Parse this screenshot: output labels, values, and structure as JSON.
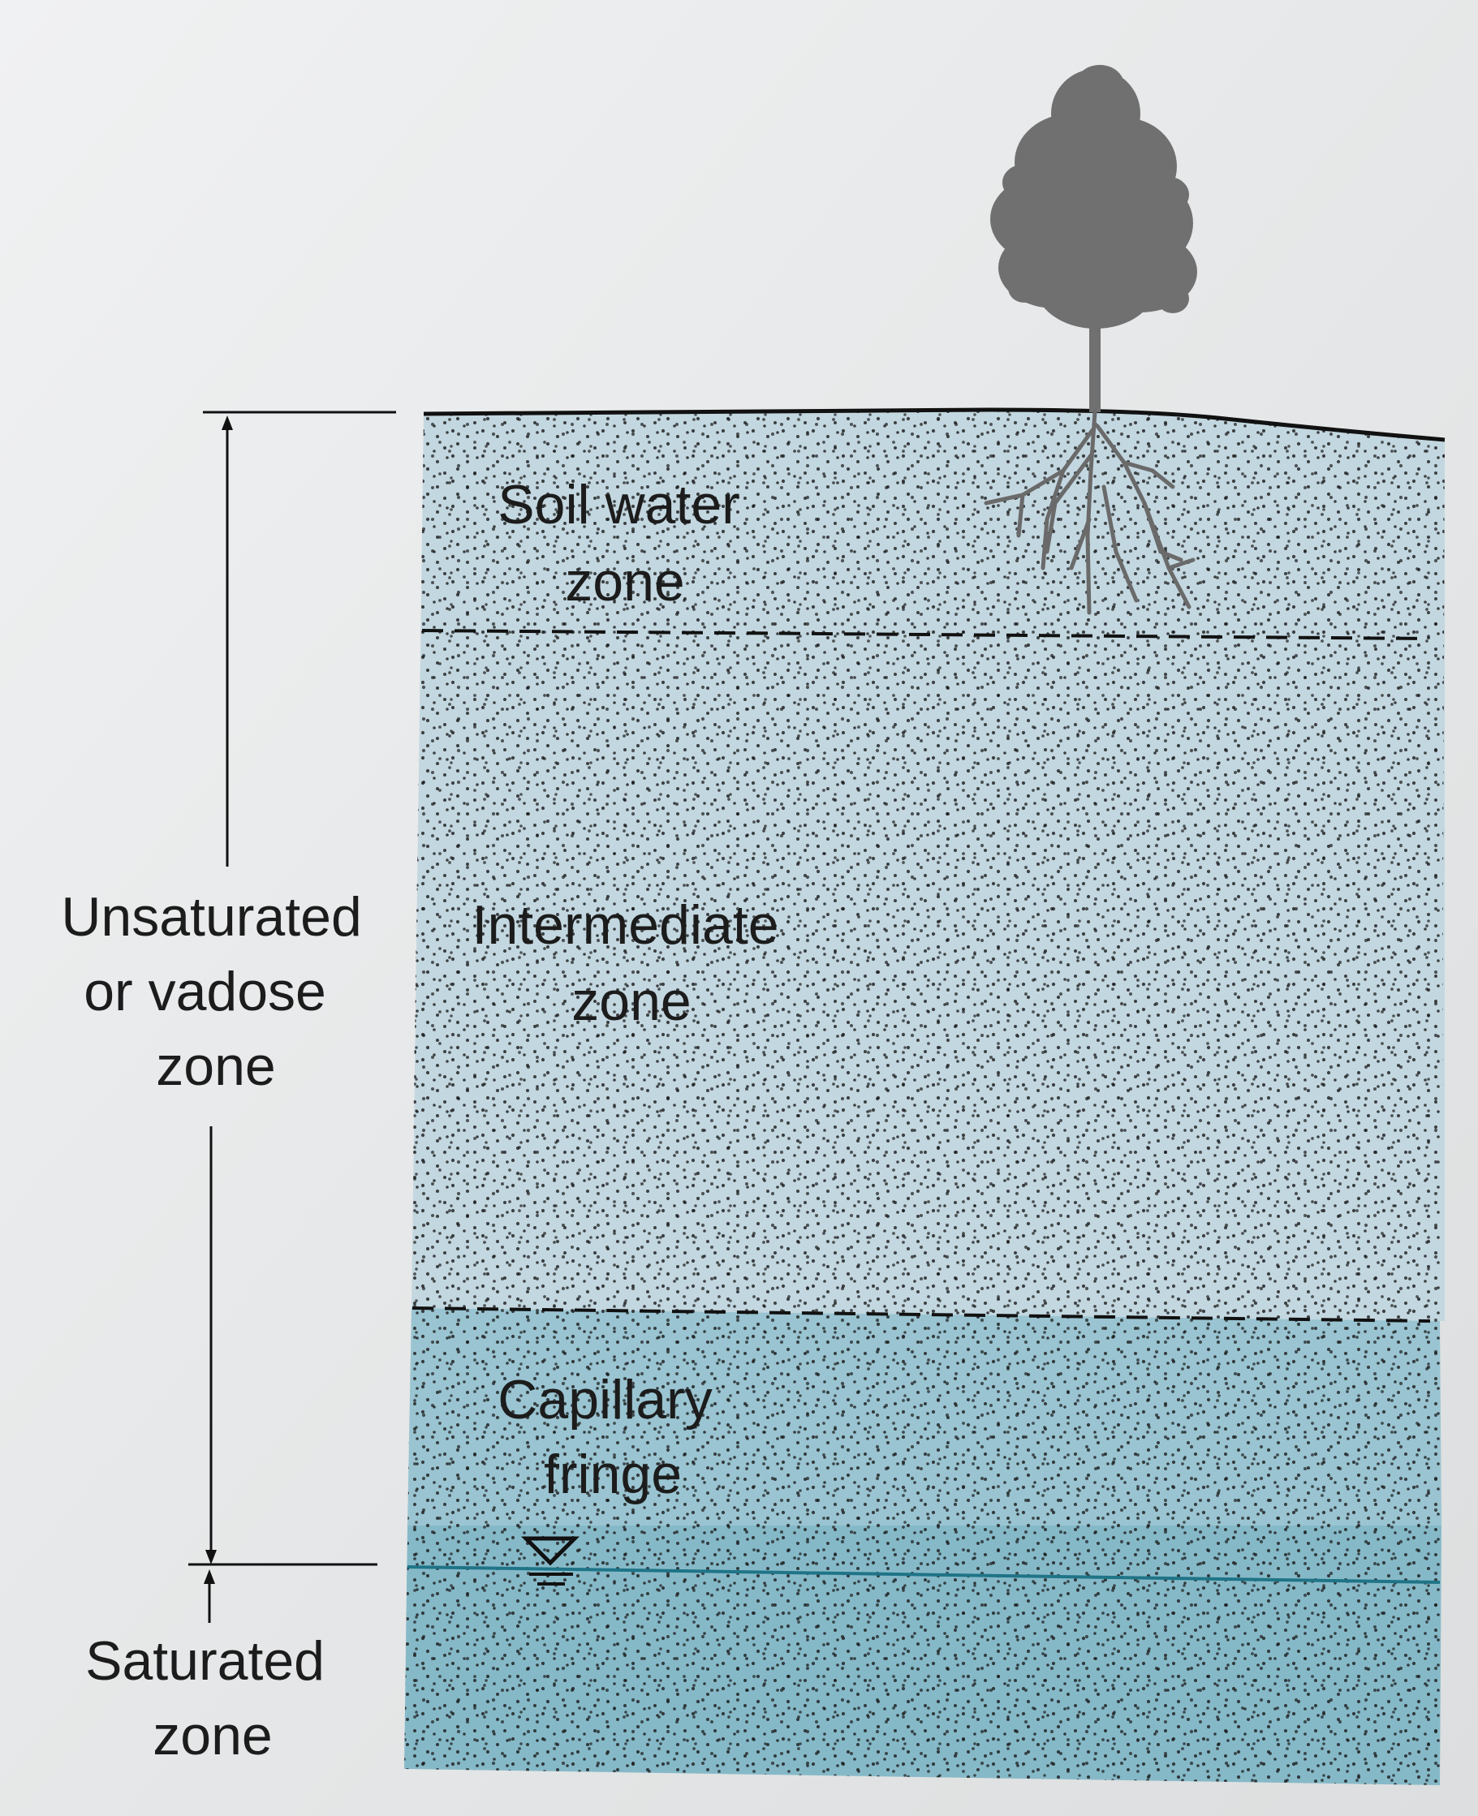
{
  "labels": {
    "soil_water": [
      "Soil water",
      "zone"
    ],
    "intermediate": [
      "Intermediate",
      "zone"
    ],
    "capillary": [
      "Capillary",
      "fringe"
    ],
    "unsaturated": [
      "Unsaturated",
      "or vadose",
      "zone"
    ],
    "saturated": [
      "Saturated",
      "zone"
    ]
  },
  "colors": {
    "page": "#e6e7e8",
    "unsaturated_fill": "#c3d7e0",
    "saturated_fill": "#86b9c8",
    "water_table_line": "#1f7487",
    "tree": "#6f6f6f",
    "dots": "#1a1a1a"
  },
  "icons": {
    "water_table_symbol": "inverted-triangle-water-table-icon",
    "tree": "tree-icon"
  }
}
